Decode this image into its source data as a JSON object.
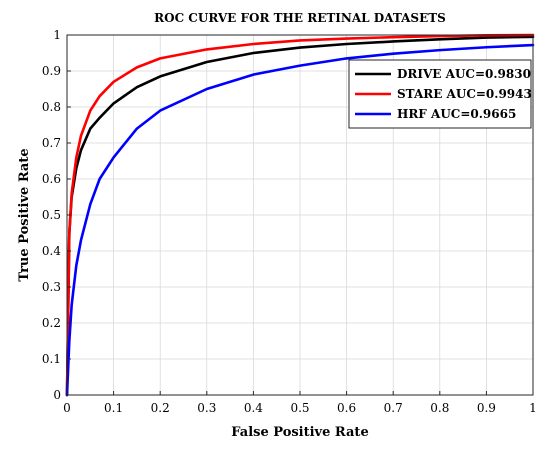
{
  "chart_data": {
    "type": "line",
    "title": "ROC CURVE FOR THE RETINAL DATASETS",
    "xlabel": "False Positive Rate",
    "ylabel": "True Positive Rate",
    "xlim": [
      0,
      1
    ],
    "ylim": [
      0,
      1
    ],
    "xticks": [
      "0",
      "0.1",
      "0.2",
      "0.3",
      "0.4",
      "0.5",
      "0.6",
      "0.7",
      "0.8",
      "0.9",
      "1"
    ],
    "yticks": [
      "0",
      "0.1",
      "0.2",
      "0.3",
      "0.4",
      "0.5",
      "0.6",
      "0.7",
      "0.8",
      "0.9",
      "1"
    ],
    "grid": true,
    "legend_position": "top-right",
    "series": [
      {
        "name": "DRIVE AUC=0.9830",
        "color": "#000000",
        "x": [
          0,
          0.005,
          0.01,
          0.02,
          0.03,
          0.05,
          0.07,
          0.1,
          0.15,
          0.2,
          0.3,
          0.4,
          0.5,
          0.6,
          0.7,
          0.8,
          0.9,
          1.0
        ],
        "y": [
          0,
          0.45,
          0.55,
          0.63,
          0.68,
          0.74,
          0.77,
          0.81,
          0.855,
          0.885,
          0.925,
          0.95,
          0.965,
          0.975,
          0.982,
          0.988,
          0.993,
          0.995
        ]
      },
      {
        "name": "STARE AUC=0.9943",
        "color": "#ff0000",
        "x": [
          0,
          0.005,
          0.01,
          0.02,
          0.03,
          0.05,
          0.07,
          0.1,
          0.15,
          0.2,
          0.3,
          0.4,
          0.5,
          0.6,
          0.7,
          0.8,
          0.9,
          1.0
        ],
        "y": [
          0,
          0.45,
          0.56,
          0.66,
          0.72,
          0.79,
          0.83,
          0.87,
          0.91,
          0.935,
          0.96,
          0.975,
          0.985,
          0.99,
          0.994,
          0.997,
          0.999,
          1.0
        ]
      },
      {
        "name": "HRF AUC=0.9665",
        "color": "#0000ff",
        "x": [
          0,
          0.005,
          0.01,
          0.02,
          0.03,
          0.05,
          0.07,
          0.1,
          0.15,
          0.2,
          0.3,
          0.4,
          0.5,
          0.6,
          0.7,
          0.8,
          0.9,
          1.0
        ],
        "y": [
          0,
          0.15,
          0.25,
          0.36,
          0.43,
          0.53,
          0.6,
          0.66,
          0.74,
          0.79,
          0.85,
          0.89,
          0.915,
          0.935,
          0.948,
          0.958,
          0.966,
          0.972
        ]
      }
    ]
  }
}
